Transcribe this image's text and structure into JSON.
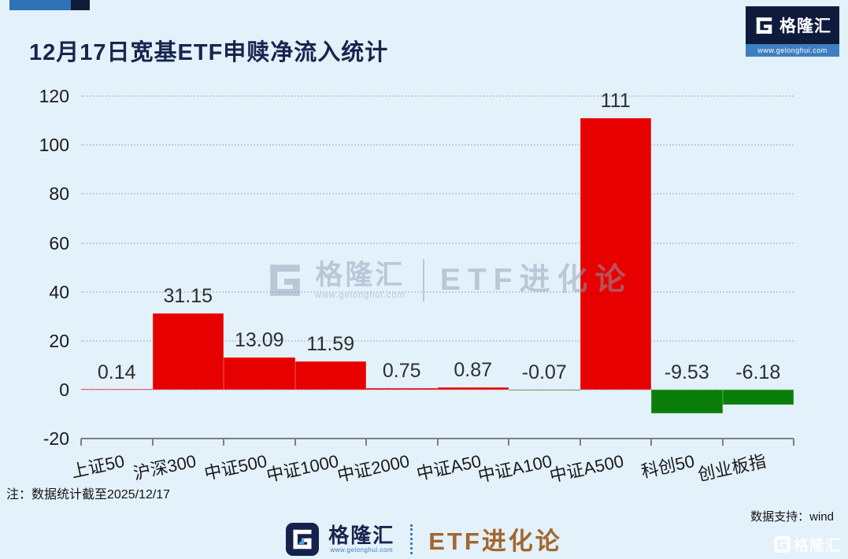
{
  "header": {
    "title": "12月17日宽基ETF申赎净流入统计",
    "logo": {
      "name": "格隆汇",
      "url": "www.gelonghui.com"
    }
  },
  "watermark": {
    "brand": "格隆汇",
    "url": "www.gelonghui.com",
    "series": "ETF进化论"
  },
  "footnote": "注：数据统计截至2025/12/17",
  "data_support": "数据支持：wind",
  "footer": {
    "brand": "格隆汇",
    "url": "www.gelonghui.com",
    "series": "ETF进化论",
    "corner_brand": "格隆汇"
  },
  "colors": {
    "background": "#E3F1FA",
    "positive_bar": "#E60000",
    "negative_bar": "#0A7D0A",
    "title_navy": "#17254E",
    "series_bronze": "#A2672C",
    "logo_navy": "#0E1B3D",
    "logo_blue": "#3F7FC1"
  },
  "chart_data": {
    "type": "bar",
    "title": "12月17日宽基ETF申赎净流入统计",
    "categories": [
      "上证50",
      "沪深300",
      "中证500",
      "中证1000",
      "中证2000",
      "中证A50",
      "中证A100",
      "中证A500",
      "科创50",
      "创业板指"
    ],
    "values": [
      0.14,
      31.15,
      13.09,
      11.59,
      0.75,
      0.87,
      -0.07,
      111,
      -9.53,
      -6.18
    ],
    "value_labels": [
      "0.14",
      "31.15",
      "13.09",
      "11.59",
      "0.75",
      "0.87",
      "-0.07",
      "111",
      "-9.53",
      "-6.18"
    ],
    "xlabel": "",
    "ylabel": "",
    "ylim": [
      -20,
      120
    ],
    "yticks": [
      120,
      100,
      80,
      60,
      40,
      20,
      0,
      -20
    ],
    "grid": "horizontal-dotted",
    "legend": "none",
    "positive_color": "#E60000",
    "negative_color": "#0A7D0A"
  }
}
